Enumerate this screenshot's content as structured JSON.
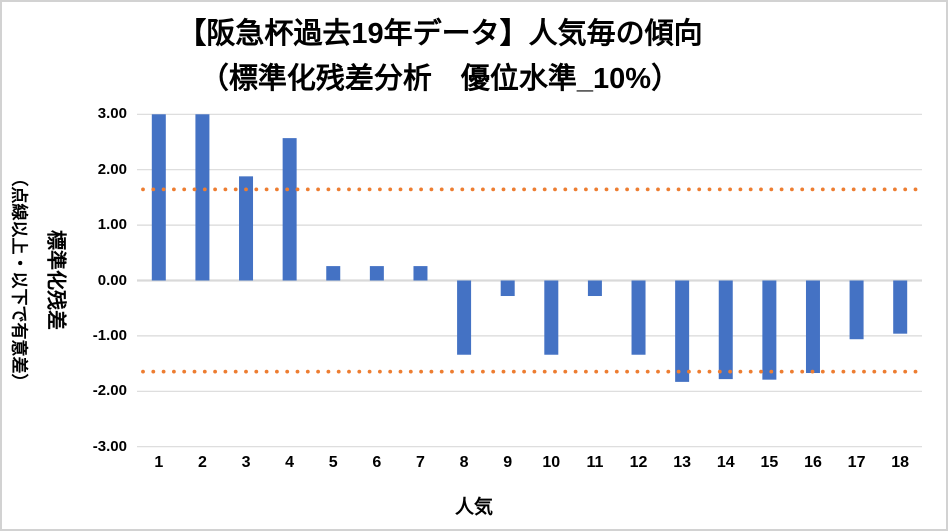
{
  "title": {
    "line1": "【阪急杯過去19年データ】人気毎の傾向",
    "line2": "（標準化残差分析　優位水準_10%）"
  },
  "axes": {
    "y": {
      "title": "標準化残差",
      "subtitle": "（点線以上・以下で有意差）"
    },
    "x": {
      "title": "人気"
    }
  },
  "chart_data": {
    "type": "bar",
    "title": "【阪急杯過去19年データ】人気毎の傾向（標準化残差分析　優位水準_10%）",
    "xlabel": "人気",
    "ylabel": "標準化残差（点線以上・以下で有意差）",
    "categories": [
      "1",
      "2",
      "3",
      "4",
      "5",
      "6",
      "7",
      "8",
      "9",
      "10",
      "11",
      "12",
      "13",
      "14",
      "15",
      "16",
      "17",
      "18"
    ],
    "values": [
      3.0,
      3.0,
      1.88,
      2.57,
      0.26,
      0.26,
      0.26,
      -1.34,
      -0.28,
      -1.34,
      -0.28,
      -1.34,
      -1.83,
      -1.78,
      -1.79,
      -1.67,
      -1.06,
      -0.96
    ],
    "ylim": [
      -3.0,
      3.0
    ],
    "ytick_values": [
      3,
      2,
      1,
      0,
      -1,
      -2,
      -3
    ],
    "ytick_labels": [
      "3.00",
      "2.00",
      "1.00",
      "0.00",
      "-1.00",
      "-2.00",
      "-3.00"
    ],
    "grid": true,
    "legend": "none",
    "significance_lines": {
      "values": [
        1.645,
        -1.645
      ],
      "style": "dotted",
      "color": "#ED7D31"
    },
    "bar_color": "#4472C4",
    "gridline_color": "#D9D9D9"
  }
}
